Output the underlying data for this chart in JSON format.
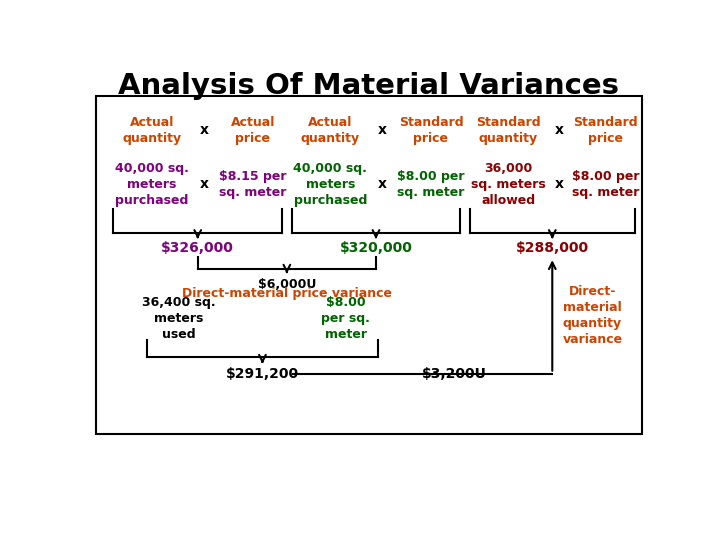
{
  "title": "Analysis Of Material Variances",
  "title_color": "#000000",
  "bg_color": "#ffffff",
  "border_color": "#000000",
  "color_purple": "#800080",
  "color_green": "#006400",
  "color_darkred": "#8B0000",
  "color_orange": "#CC4400",
  "color_black": "#000000",
  "header_col1_left": "Actual\nquantity",
  "header_col1_right": "Actual\nprice",
  "header_col2_left": "Actual\nquantity",
  "header_col2_right": "Standard\nprice",
  "header_col3_left": "Standard\nquantity",
  "header_col3_right": "Standard\nprice",
  "val_col1_left": "40,000 sq.\nmeters\npurchased",
  "val_col1_right": "$8.15 per\nsq. meter",
  "val_col2_left": "40,000 sq.\nmeters\npurchased",
  "val_col2_right": "$8.00 per\nsq. meter",
  "val_col3_left": "36,000\nsq. meters\nallowed",
  "val_col3_right": "$8.00 per\nsq. meter",
  "result1": "$326,000",
  "result2": "$320,000",
  "result3": "$288,000",
  "price_var_top": "$6,000U",
  "price_var_bot": "Direct-material price variance",
  "bot_left": "36,400 sq.\nmeters\nused",
  "bot_right": "$8.00\nper sq.\nmeter",
  "bot_result1": "$291,200",
  "bot_result2": "$3,200U",
  "qty_var": "Direct-\nmaterial\nquantity\nvariance"
}
